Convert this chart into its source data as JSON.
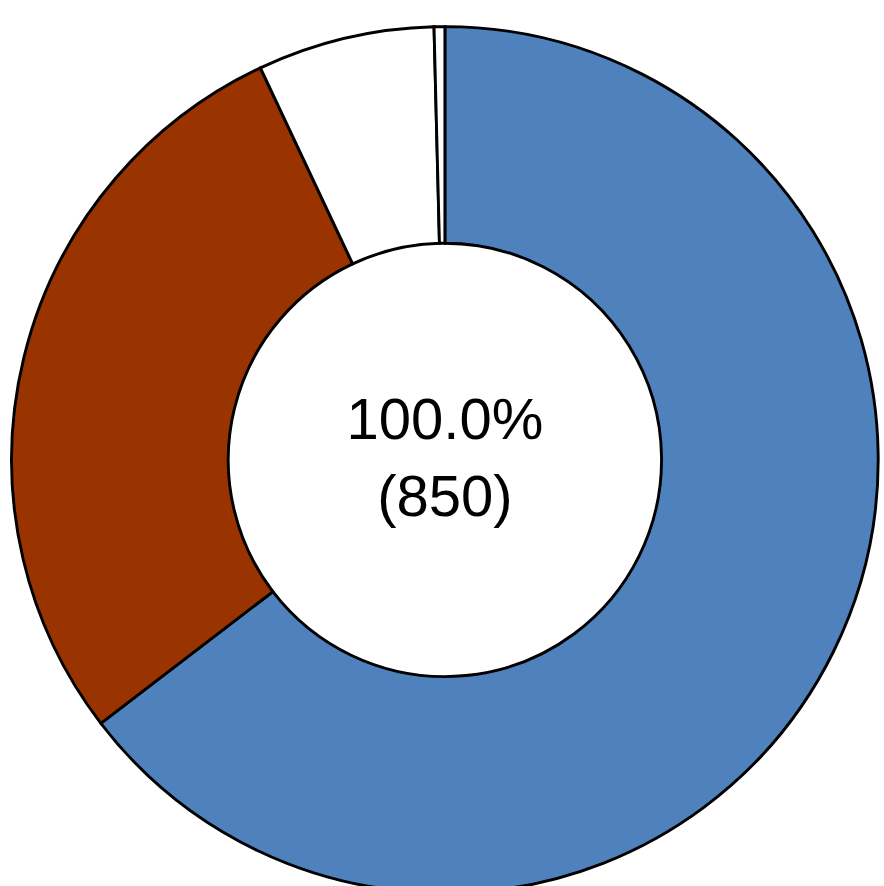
{
  "chart_data": {
    "type": "donut",
    "categories": [
      null,
      null,
      null,
      null
    ],
    "values": [
      64.6,
      28.4,
      6.6,
      0.4
    ],
    "colors": [
      "#4f81bd",
      "#993300",
      "#ffffff",
      "#ffffff"
    ],
    "annotations": [
      "100.0%",
      "(850)"
    ],
    "legend": false
  }
}
